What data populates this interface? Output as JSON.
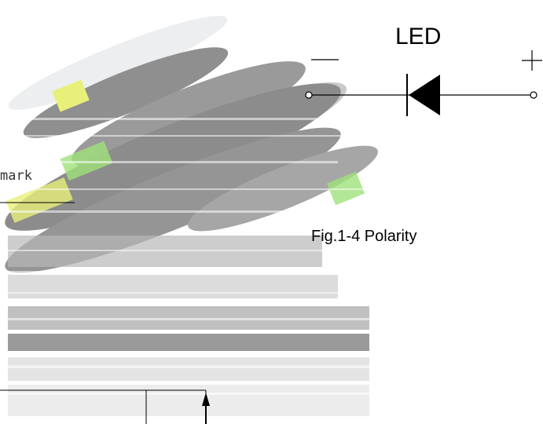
{
  "diagram": {
    "led_label": "LED",
    "minus_sign": "—",
    "plus_sign": "+",
    "mark_label": "mark",
    "caption": "Fig.1-4 Polarity"
  },
  "colors": {
    "photo_gray": "#8c8c8c",
    "photo_light": "#c9c9c9",
    "highlight_yellow": "#e8f07a",
    "highlight_green": "#9fe27a",
    "line": "#000000"
  }
}
